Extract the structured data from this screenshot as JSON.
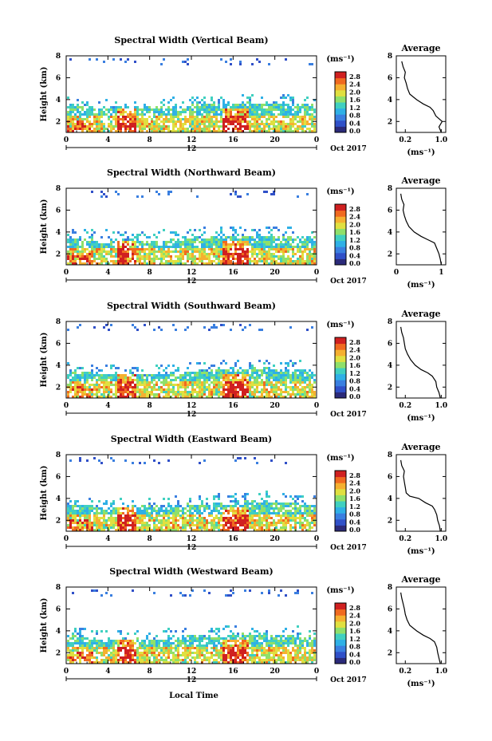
{
  "figure": {
    "xlabel": "Local Time",
    "date_label": "12",
    "month_year": "Oct 2017",
    "unit_label": "(ms⁻¹)"
  },
  "colorbar": {
    "ticks": [
      "2.8",
      "2.4",
      "2.0",
      "1.6",
      "1.2",
      "0.8",
      "0.4",
      "0.0"
    ],
    "colors": [
      "#2b2a7a",
      "#3050c8",
      "#3a7fe0",
      "#2fb0e6",
      "#40d0c0",
      "#8fe06a",
      "#e0e040",
      "#f5b030",
      "#f06a20",
      "#d02020"
    ]
  },
  "chart_data": [
    {
      "type": "heatmap",
      "title": "Spectral Width (Vertical Beam)",
      "ylabel": "Height (km)",
      "ylim": [
        1,
        8
      ],
      "yticks": [
        "2",
        "4",
        "6",
        "8"
      ],
      "xlim": [
        0,
        24
      ],
      "xticks": [
        "0",
        "4",
        "8",
        "12",
        "16",
        "20",
        "0"
      ],
      "average": {
        "title": "Average",
        "xlim": [
          0,
          1.1
        ],
        "xticks": [
          "0.2",
          "1.0"
        ],
        "xtick_values": [
          0.2,
          1.0
        ],
        "ylim": [
          1,
          8
        ],
        "yticks": [
          "2",
          "4",
          "6",
          "8"
        ],
        "profile": [
          [
            1.0,
            1.0
          ],
          [
            1.5,
            0.95
          ],
          [
            2.0,
            1.02
          ],
          [
            2.5,
            0.88
          ],
          [
            3.0,
            0.82
          ],
          [
            3.3,
            0.75
          ],
          [
            3.6,
            0.6
          ],
          [
            4.0,
            0.45
          ],
          [
            4.5,
            0.3
          ],
          [
            5.0,
            0.25
          ],
          [
            5.5,
            0.22
          ],
          [
            6.0,
            0.18
          ],
          [
            6.5,
            0.2
          ],
          [
            7.0,
            0.15
          ],
          [
            7.5,
            0.12
          ]
        ]
      }
    },
    {
      "type": "heatmap",
      "title": "Spectral Width (Northward Beam)",
      "ylabel": "Height (km)",
      "ylim": [
        1,
        8
      ],
      "yticks": [
        "2",
        "4",
        "6",
        "8"
      ],
      "xlim": [
        0,
        24
      ],
      "xticks": [
        "0",
        "4",
        "8",
        "12",
        "16",
        "20",
        "0"
      ],
      "average": {
        "title": "Average",
        "xlim": [
          0,
          1.1
        ],
        "xticks": [
          "0",
          "1"
        ],
        "xtick_values": [
          0,
          1
        ],
        "ylim": [
          1,
          8
        ],
        "yticks": [
          "2",
          "4",
          "6",
          "8"
        ],
        "profile": [
          [
            1.0,
            1.0
          ],
          [
            1.5,
            0.98
          ],
          [
            2.0,
            0.95
          ],
          [
            2.5,
            0.9
          ],
          [
            3.0,
            0.85
          ],
          [
            3.3,
            0.7
          ],
          [
            3.6,
            0.55
          ],
          [
            4.0,
            0.4
          ],
          [
            4.5,
            0.28
          ],
          [
            5.0,
            0.22
          ],
          [
            5.5,
            0.18
          ],
          [
            6.0,
            0.15
          ],
          [
            6.5,
            0.17
          ],
          [
            7.0,
            0.12
          ],
          [
            7.5,
            0.1
          ]
        ]
      }
    },
    {
      "type": "heatmap",
      "title": "Spectral Width (Southward Beam)",
      "ylabel": "Height (km)",
      "ylim": [
        1,
        8
      ],
      "yticks": [
        "2",
        "4",
        "6",
        "8"
      ],
      "xlim": [
        0,
        24
      ],
      "xticks": [
        "0",
        "4",
        "8",
        "12",
        "16",
        "20",
        "0"
      ],
      "average": {
        "title": "Average",
        "xlim": [
          0,
          1.1
        ],
        "xticks": [
          "0.2",
          "1.0"
        ],
        "xtick_values": [
          0.2,
          1.0
        ],
        "ylim": [
          1,
          8
        ],
        "yticks": [
          "2",
          "4",
          "6",
          "8"
        ],
        "profile": [
          [
            1.0,
            0.98
          ],
          [
            1.5,
            0.95
          ],
          [
            2.0,
            0.9
          ],
          [
            2.5,
            0.88
          ],
          [
            3.0,
            0.8
          ],
          [
            3.3,
            0.7
          ],
          [
            3.6,
            0.55
          ],
          [
            4.0,
            0.42
          ],
          [
            4.5,
            0.32
          ],
          [
            5.0,
            0.25
          ],
          [
            5.5,
            0.2
          ],
          [
            6.0,
            0.18
          ],
          [
            6.5,
            0.16
          ],
          [
            7.0,
            0.12
          ],
          [
            7.5,
            0.1
          ]
        ]
      }
    },
    {
      "type": "heatmap",
      "title": "Spectral Width (Eastward Beam)",
      "ylabel": "Height (km)",
      "ylim": [
        1,
        8
      ],
      "yticks": [
        "2",
        "4",
        "6",
        "8"
      ],
      "xlim": [
        0,
        24
      ],
      "xticks": [
        "0",
        "4",
        "8",
        "12",
        "16",
        "20",
        "0"
      ],
      "average": {
        "title": "Average",
        "xlim": [
          0,
          1.1
        ],
        "xticks": [
          "0.2",
          "1.0"
        ],
        "xtick_values": [
          0.2,
          1.0
        ],
        "ylim": [
          1,
          8
        ],
        "yticks": [
          "2",
          "4",
          "6",
          "8"
        ],
        "profile": [
          [
            1.0,
            0.98
          ],
          [
            1.5,
            0.96
          ],
          [
            2.0,
            0.92
          ],
          [
            2.5,
            0.9
          ],
          [
            3.0,
            0.85
          ],
          [
            3.3,
            0.8
          ],
          [
            3.6,
            0.65
          ],
          [
            4.0,
            0.5
          ],
          [
            4.2,
            0.3
          ],
          [
            4.5,
            0.22
          ],
          [
            5.0,
            0.2
          ],
          [
            5.5,
            0.18
          ],
          [
            6.0,
            0.16
          ],
          [
            6.5,
            0.18
          ],
          [
            7.0,
            0.12
          ],
          [
            7.5,
            0.1
          ]
        ]
      }
    },
    {
      "type": "heatmap",
      "title": "Spectral Width (Westward Beam)",
      "ylabel": "Height (km)",
      "ylim": [
        1,
        8
      ],
      "yticks": [
        "2",
        "4",
        "6",
        "8"
      ],
      "xlim": [
        0,
        24
      ],
      "xticks": [
        "0",
        "4",
        "8",
        "12",
        "16",
        "20",
        "0"
      ],
      "average": {
        "title": "Average",
        "xlim": [
          0,
          1.1
        ],
        "xticks": [
          "0.2",
          "1.0"
        ],
        "xtick_values": [
          0.2,
          1.0
        ],
        "ylim": [
          1,
          8
        ],
        "yticks": [
          "2",
          "4",
          "6",
          "8"
        ],
        "profile": [
          [
            1.0,
            0.98
          ],
          [
            1.5,
            0.95
          ],
          [
            2.0,
            0.92
          ],
          [
            2.5,
            0.9
          ],
          [
            3.0,
            0.85
          ],
          [
            3.3,
            0.75
          ],
          [
            3.6,
            0.6
          ],
          [
            4.0,
            0.45
          ],
          [
            4.5,
            0.3
          ],
          [
            5.0,
            0.24
          ],
          [
            5.5,
            0.2
          ],
          [
            6.0,
            0.18
          ],
          [
            6.5,
            0.15
          ],
          [
            7.0,
            0.12
          ],
          [
            7.5,
            0.1
          ]
        ]
      }
    }
  ]
}
